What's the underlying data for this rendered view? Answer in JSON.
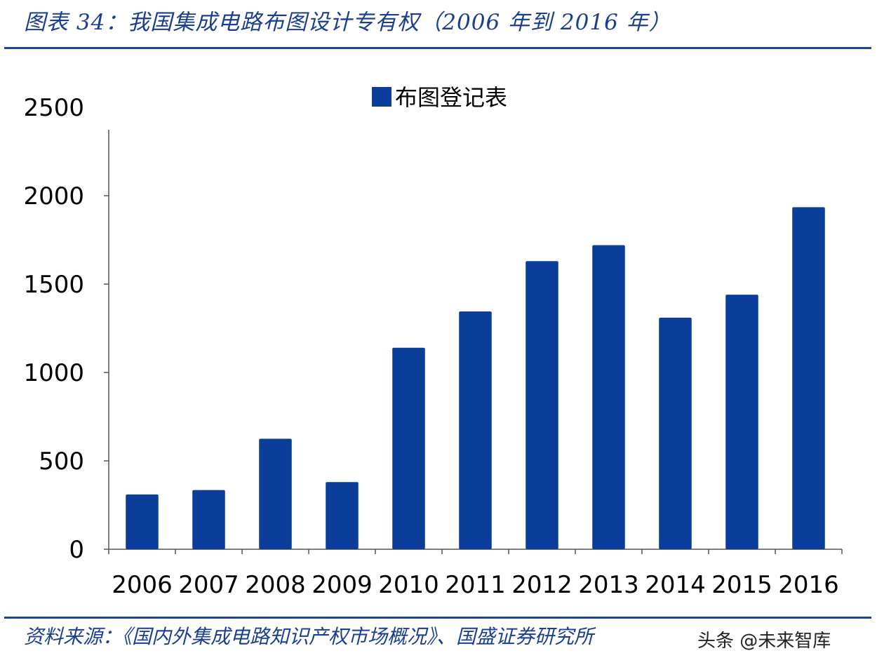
{
  "header": {
    "title": "图表 34：我国集成电路布图设计专有权（2006 年到 2016 年）"
  },
  "footer": {
    "source": "资料来源：《国内外集成电路知识产权市场概况》、国盛证券研究所",
    "watermark": "头条 @未来智库"
  },
  "colors": {
    "bar": "#0a3e9a",
    "rule": "#1f4397",
    "title_text": "#1b3f8f"
  },
  "chart_data": {
    "type": "bar",
    "categories": [
      "2006",
      "2007",
      "2008",
      "2009",
      "2010",
      "2011",
      "2012",
      "2013",
      "2014",
      "2015",
      "2016"
    ],
    "series": [
      {
        "name": "布图登记表",
        "values": [
          310,
          335,
          625,
          380,
          1140,
          1345,
          1630,
          1720,
          1310,
          1440,
          1935
        ]
      }
    ],
    "ylim": [
      0,
      2500
    ],
    "yticks": [
      0,
      500,
      1000,
      1500,
      2000,
      2500
    ],
    "grid": false,
    "legend_position": "top-center",
    "title": "",
    "xlabel": "",
    "ylabel": ""
  }
}
